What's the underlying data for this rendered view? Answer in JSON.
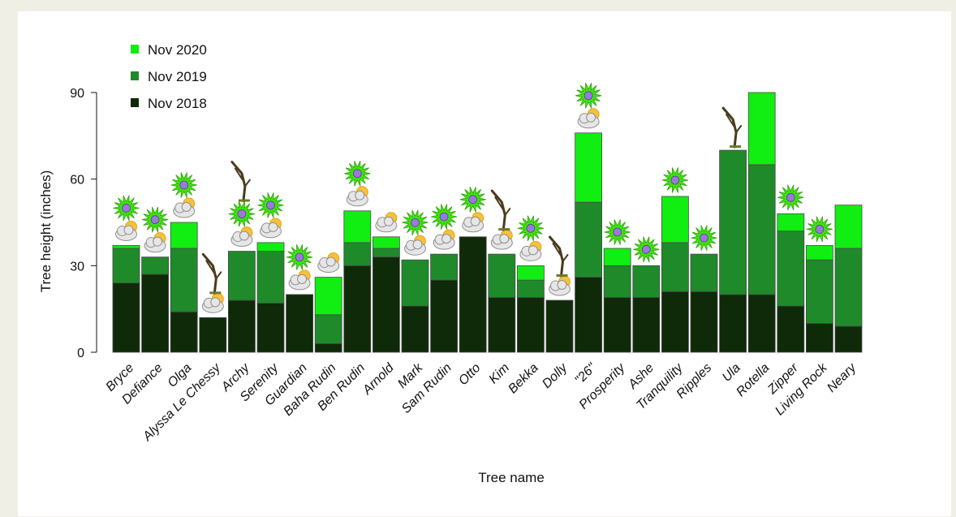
{
  "chart_data": {
    "type": "bar",
    "stacked": true,
    "title": "",
    "xlabel": "Tree name",
    "ylabel": "Tree height (inches)",
    "ylim": [
      0,
      90
    ],
    "yticks": [
      0,
      30,
      60,
      90
    ],
    "grid": false,
    "legend_position": "top-left",
    "categories": [
      "Bryce",
      "Defiance",
      "Olga",
      "Alyssa Le Chessy",
      "Archy",
      "Serenity",
      "Guardian",
      "Baha Rudin",
      "Ben Rudin",
      "Arnold",
      "Mark",
      "Sam Rudin",
      "Otto",
      "Kim",
      "Bekka",
      "Dolly",
      "\"26\"",
      "Prosperity",
      "Ashe",
      "Tranquility",
      "Ripples",
      "Ula",
      "Rotella",
      "Zipper",
      "Living Rock",
      "Neary"
    ],
    "series": [
      {
        "name": "Nov 2018",
        "color": "#0f2a08",
        "values": [
          24,
          27,
          14,
          12,
          18,
          17,
          20,
          3,
          30,
          33,
          16,
          25,
          40,
          19,
          19,
          18,
          26,
          19,
          19,
          21,
          21,
          20,
          20,
          16,
          10,
          9
        ]
      },
      {
        "name": "Nov 2019",
        "color": "#1f8a2a",
        "values": [
          12,
          6,
          22,
          0,
          17,
          18,
          0,
          10,
          8,
          3,
          16,
          9,
          0,
          15,
          6,
          0,
          26,
          11,
          11,
          17,
          13,
          50,
          45,
          26,
          22,
          27
        ]
      },
      {
        "name": "Nov 2020",
        "color": "#11ee11",
        "values": [
          1,
          0,
          9,
          0,
          0,
          3,
          0,
          13,
          11,
          4,
          0,
          0,
          0,
          0,
          5,
          0,
          24,
          6,
          0,
          16,
          0,
          0,
          25,
          6,
          5,
          15
        ]
      }
    ],
    "icons": [
      "virus+cloud",
      "virus+cloud",
      "virus+cloud",
      "dead-tree+cloud",
      "dead-tree+virus+cloud",
      "virus+cloud",
      "virus+cloud",
      "cloud",
      "virus+cloud",
      "cloud",
      "virus+cloud",
      "virus+cloud",
      "virus+cloud",
      "dead-tree+cloud",
      "virus+cloud",
      "dead-tree+cloud",
      "virus+cloud",
      "virus",
      "virus",
      "virus",
      "virus",
      "dead-tree",
      "none",
      "virus",
      "virus",
      "none"
    ]
  }
}
